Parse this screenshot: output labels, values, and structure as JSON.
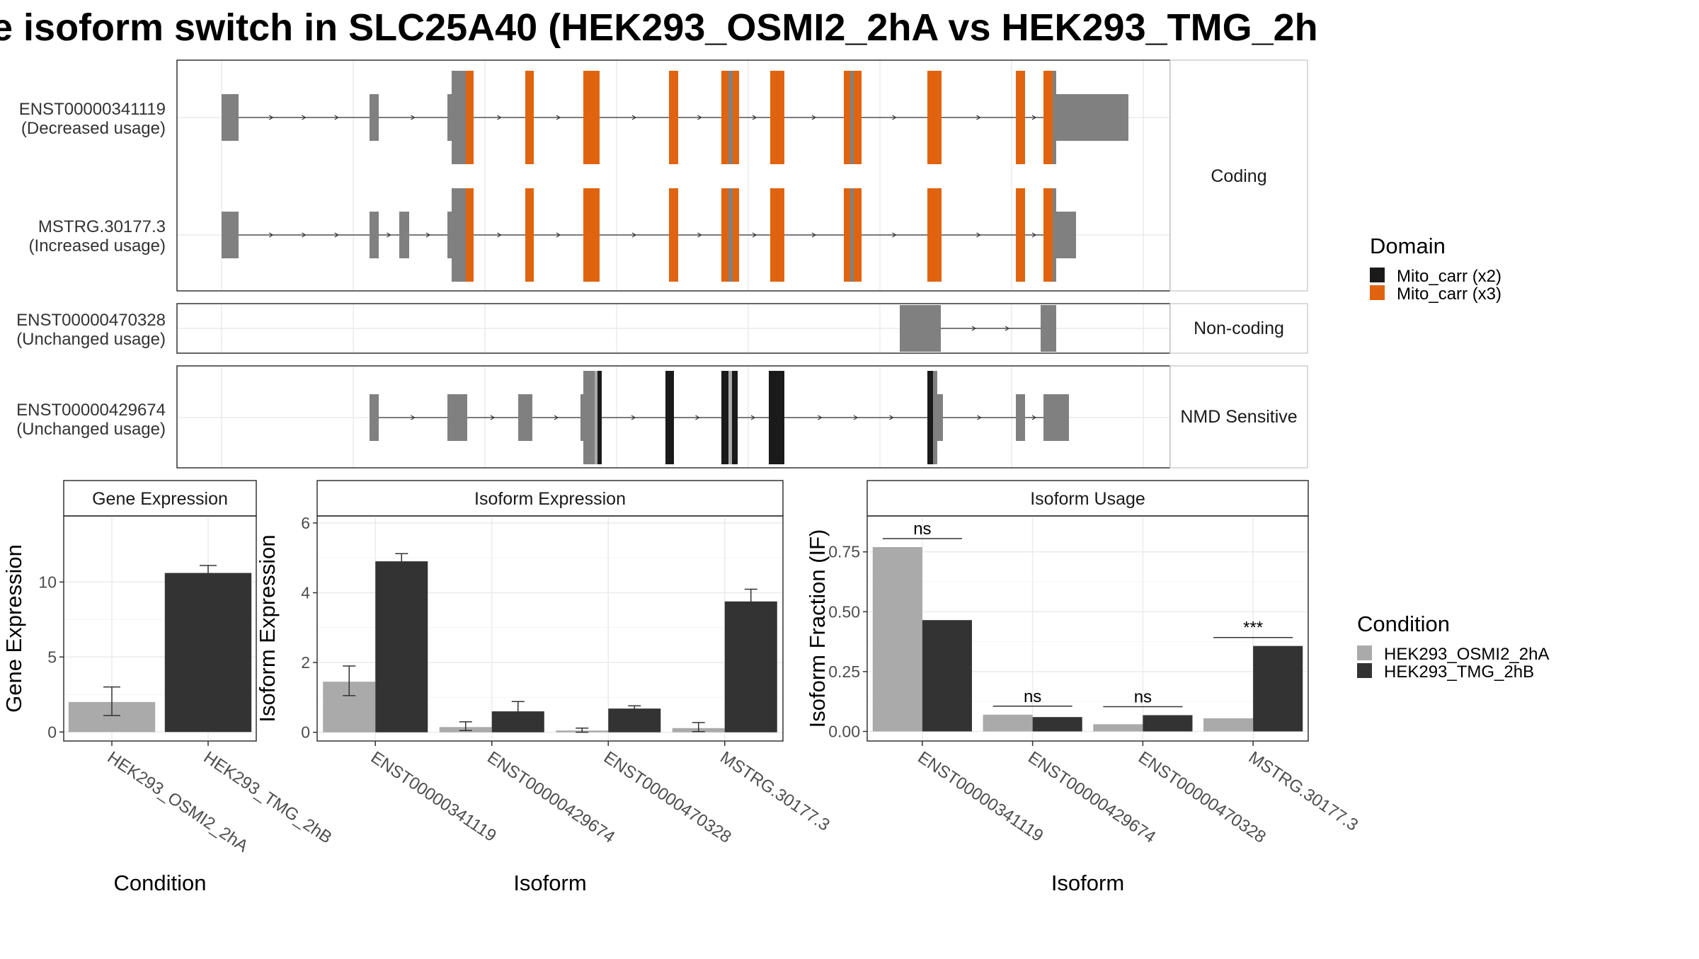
{
  "title": "e isoform switch in SLC25A40 (HEK293_OSMI2_2hA vs HEK293_TMG_2h",
  "structure": {
    "rows": [
      {
        "id": "ENST00000341119",
        "usage": "(Decreased usage)"
      },
      {
        "id": "MSTRG.30177.3",
        "usage": "(Increased usage)"
      },
      {
        "id": "ENST00000470328",
        "usage": "(Unchanged usage)"
      },
      {
        "id": "ENST00000429674",
        "usage": "(Unchanged usage)"
      }
    ],
    "facets": [
      "Coding",
      "Non-coding",
      "NMD Sensitive"
    ]
  },
  "domain_legend": {
    "title": "Domain",
    "items": [
      {
        "label": "Mito_carr (x2)",
        "color": "#1a1a1a"
      },
      {
        "label": "Mito_carr (x3)",
        "color": "#e06410"
      }
    ]
  },
  "condition_legend": {
    "title": "Condition",
    "items": [
      {
        "label": "HEK293_OSMI2_2hA",
        "color": "#aaaaaa"
      },
      {
        "label": "HEK293_TMG_2hB",
        "color": "#333333"
      }
    ]
  },
  "chart_data": [
    {
      "type": "bar",
      "title": "Gene Expression",
      "xlabel": "Condition",
      "ylabel": "Gene Expression",
      "categories": [
        "HEK293_OSMI2_2hA",
        "HEK293_TMG_2hB"
      ],
      "values": [
        2.0,
        10.6
      ],
      "error_low": [
        1.1,
        10.1
      ],
      "error_high": [
        3.0,
        11.1
      ],
      "colors": [
        "#aaaaaa",
        "#333333"
      ],
      "ylim": [
        -0.6,
        14.4
      ],
      "yticks": [
        0,
        5,
        10
      ]
    },
    {
      "type": "bar",
      "title": "Isoform Expression",
      "xlabel": "Isoform",
      "ylabel": "Isoform Expression",
      "categories": [
        "ENST00000341119",
        "ENST00000429674",
        "ENST00000470328",
        "MSTRG.30177.3"
      ],
      "series": [
        {
          "values": [
            1.45,
            0.15,
            0.05,
            0.12
          ],
          "error_low": [
            1.05,
            0.05,
            0.0,
            0.02
          ],
          "error_high": [
            1.9,
            0.3,
            0.12,
            0.28
          ],
          "color": "#aaaaaa"
        },
        {
          "values": [
            4.9,
            0.6,
            0.68,
            3.75
          ],
          "error_low": [
            4.7,
            0.4,
            0.6,
            3.45
          ],
          "error_high": [
            5.12,
            0.88,
            0.76,
            4.1
          ],
          "color": "#333333"
        }
      ],
      "ylim": [
        -0.25,
        6.2
      ],
      "yticks": [
        0,
        2,
        4,
        6
      ]
    },
    {
      "type": "bar",
      "title": "Isoform Usage",
      "xlabel": "Isoform",
      "ylabel": "Isoform Fraction (IF)",
      "categories": [
        "ENST00000341119",
        "ENST00000429674",
        "ENST00000470328",
        "MSTRG.30177.3"
      ],
      "series": [
        {
          "values": [
            0.77,
            0.07,
            0.03,
            0.055
          ],
          "color": "#aaaaaa"
        },
        {
          "values": [
            0.465,
            0.06,
            0.068,
            0.357
          ],
          "color": "#333333"
        }
      ],
      "annotations": [
        "ns",
        "ns",
        "ns",
        "***"
      ],
      "ylim": [
        -0.04,
        0.9
      ],
      "yticks": [
        0.0,
        0.25,
        0.5,
        0.75
      ],
      "ytick_labels": [
        "0.00",
        "0.25",
        "0.50",
        "0.75"
      ]
    }
  ]
}
